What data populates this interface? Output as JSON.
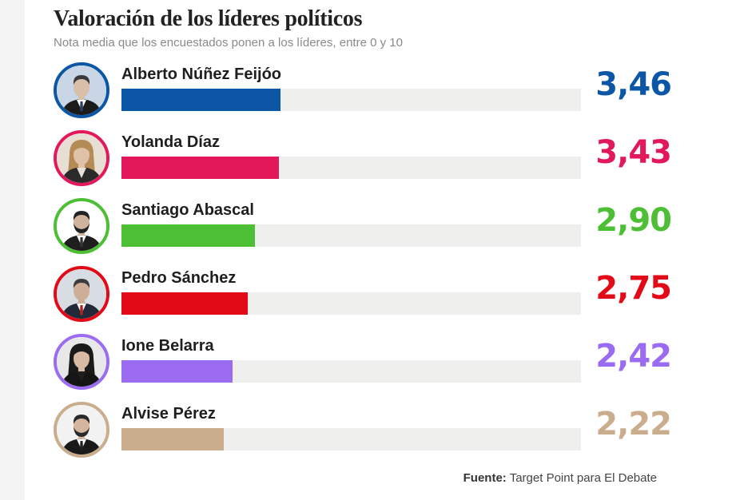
{
  "header": {
    "title": "Valoración de los líderes políticos",
    "subtitle": "Nota media que los encuestados ponen a los líderes, entre 0 y 10"
  },
  "source": {
    "label": "Fuente:",
    "text": "Target Point para El Debate"
  },
  "chart_data": {
    "type": "bar",
    "orientation": "horizontal",
    "title": "Valoración de los líderes políticos",
    "subtitle": "Nota media que los encuestados ponen a los líderes, entre 0 y 10",
    "xlim": [
      0,
      10
    ],
    "grid": false,
    "categories": [
      "Alberto Núñez Feijóo",
      "Yolanda Díaz",
      "Santiago Abascal",
      "Pedro Sánchez",
      "Ione Belarra",
      "Alvise Pérez"
    ],
    "values": [
      3.46,
      3.43,
      2.9,
      2.75,
      2.42,
      2.22
    ],
    "value_labels": [
      "3,46",
      "3,43",
      "2,90",
      "2,75",
      "2,42",
      "2,22"
    ],
    "colors": [
      "#0b56a5",
      "#e2185a",
      "#4cbf35",
      "#e20a17",
      "#9b6cf2",
      "#c9ad8d"
    ],
    "avatar_icons": [
      "portrait-feijoo-icon",
      "portrait-yolanda-diaz-icon",
      "portrait-abascal-icon",
      "portrait-sanchez-icon",
      "portrait-belarra-icon",
      "portrait-alvise-icon"
    ]
  }
}
